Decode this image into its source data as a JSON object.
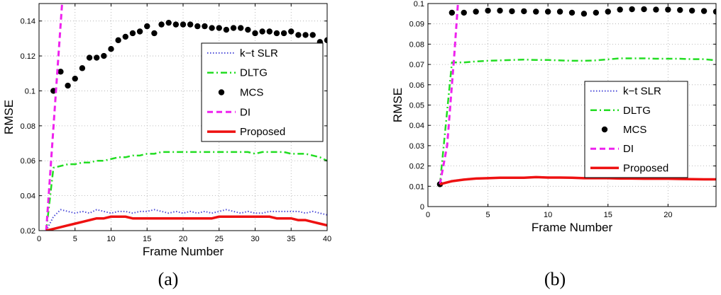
{
  "chart_data": [
    {
      "type": "line",
      "caption": "(a)",
      "xlabel": "Frame Number",
      "ylabel": "RMSE",
      "xlim": [
        0,
        40
      ],
      "ylim": [
        0.02,
        0.15
      ],
      "xticks": [
        0,
        5,
        10,
        15,
        20,
        25,
        30,
        35,
        40
      ],
      "yticks": [
        0.02,
        0.04,
        0.06,
        0.08,
        0.1,
        0.12,
        0.14
      ],
      "ytick_labels": [
        "0.02",
        "0.04",
        "0.06",
        "0.08",
        "0.1",
        "0.12",
        "0.14"
      ],
      "grid": true,
      "legend_position": "center-right",
      "series": [
        {
          "name": "k−t SLR",
          "style": "dotted",
          "color": "#4a4ad8",
          "x": [
            1,
            2,
            3,
            4,
            5,
            6,
            7,
            8,
            9,
            10,
            11,
            12,
            13,
            14,
            15,
            16,
            17,
            18,
            19,
            20,
            21,
            22,
            23,
            24,
            25,
            26,
            27,
            28,
            29,
            30,
            31,
            32,
            33,
            34,
            35,
            36,
            37,
            38,
            39,
            40
          ],
          "y": [
            0.02,
            0.028,
            0.032,
            0.031,
            0.03,
            0.031,
            0.03,
            0.032,
            0.031,
            0.03,
            0.031,
            0.031,
            0.03,
            0.031,
            0.031,
            0.032,
            0.031,
            0.03,
            0.031,
            0.03,
            0.031,
            0.03,
            0.031,
            0.03,
            0.031,
            0.032,
            0.031,
            0.03,
            0.031,
            0.03,
            0.03,
            0.031,
            0.031,
            0.031,
            0.031,
            0.031,
            0.03,
            0.031,
            0.03,
            0.029
          ]
        },
        {
          "name": "DLTG",
          "style": "dashdot",
          "color": "#22dd22",
          "x": [
            1,
            2,
            3,
            4,
            5,
            6,
            7,
            8,
            9,
            10,
            11,
            12,
            13,
            14,
            15,
            16,
            17,
            18,
            19,
            20,
            21,
            22,
            23,
            24,
            25,
            26,
            27,
            28,
            29,
            30,
            31,
            32,
            33,
            34,
            35,
            36,
            37,
            38,
            39,
            40
          ],
          "y": [
            0.02,
            0.056,
            0.057,
            0.058,
            0.058,
            0.059,
            0.059,
            0.06,
            0.06,
            0.061,
            0.062,
            0.062,
            0.063,
            0.063,
            0.064,
            0.064,
            0.065,
            0.065,
            0.065,
            0.065,
            0.065,
            0.065,
            0.065,
            0.065,
            0.065,
            0.065,
            0.065,
            0.065,
            0.065,
            0.064,
            0.065,
            0.065,
            0.065,
            0.065,
            0.064,
            0.064,
            0.064,
            0.063,
            0.062,
            0.06
          ]
        },
        {
          "name": "MCS",
          "style": "markers",
          "color": "#000000",
          "x": [
            2,
            3,
            4,
            5,
            6,
            7,
            8,
            9,
            10,
            11,
            12,
            13,
            14,
            15,
            16,
            17,
            18,
            19,
            20,
            21,
            22,
            23,
            24,
            25,
            26,
            27,
            28,
            29,
            30,
            31,
            32,
            33,
            34,
            35,
            36,
            37,
            38,
            39,
            40
          ],
          "y": [
            0.1,
            0.111,
            0.103,
            0.107,
            0.113,
            0.119,
            0.119,
            0.12,
            0.124,
            0.129,
            0.131,
            0.133,
            0.134,
            0.137,
            0.133,
            0.138,
            0.139,
            0.138,
            0.138,
            0.138,
            0.137,
            0.137,
            0.136,
            0.136,
            0.135,
            0.136,
            0.136,
            0.135,
            0.133,
            0.134,
            0.134,
            0.133,
            0.133,
            0.134,
            0.132,
            0.132,
            0.132,
            0.128,
            0.129
          ]
        },
        {
          "name": "DI",
          "style": "dashed",
          "color": "#ee22ee",
          "x": [
            1,
            3.2
          ],
          "y": [
            0.02,
            0.15
          ]
        },
        {
          "name": "Proposed",
          "style": "solid",
          "color": "#ee1111",
          "x": [
            1,
            2,
            3,
            4,
            5,
            6,
            7,
            8,
            9,
            10,
            11,
            12,
            13,
            14,
            15,
            16,
            17,
            18,
            19,
            20,
            21,
            22,
            23,
            24,
            25,
            26,
            27,
            28,
            29,
            30,
            31,
            32,
            33,
            34,
            35,
            36,
            37,
            38,
            39,
            40
          ],
          "y": [
            0.02,
            0.021,
            0.022,
            0.023,
            0.024,
            0.025,
            0.026,
            0.027,
            0.027,
            0.028,
            0.028,
            0.028,
            0.027,
            0.027,
            0.027,
            0.027,
            0.027,
            0.027,
            0.027,
            0.027,
            0.027,
            0.027,
            0.027,
            0.027,
            0.028,
            0.028,
            0.028,
            0.028,
            0.028,
            0.028,
            0.028,
            0.028,
            0.027,
            0.027,
            0.027,
            0.026,
            0.026,
            0.025,
            0.024,
            0.023
          ]
        }
      ]
    },
    {
      "type": "line",
      "caption": "(b)",
      "xlabel": "Frame Number",
      "ylabel": "RMSE",
      "xlim": [
        0,
        24
      ],
      "ylim": [
        0,
        0.1
      ],
      "xticks": [
        0,
        5,
        10,
        15,
        20
      ],
      "yticks": [
        0,
        0.01,
        0.02,
        0.03,
        0.04,
        0.05,
        0.06,
        0.07,
        0.08,
        0.09,
        0.1
      ],
      "ytick_labels": [
        "0",
        "0.01",
        "0.02",
        "0.03",
        "0.04",
        "0.05",
        "0.06",
        "0.07",
        "0.08",
        "0.09",
        "0.1"
      ],
      "grid": true,
      "legend_position": "center-right",
      "series": [
        {
          "name": "k−t SLR",
          "style": "dotted",
          "color": "#4a4ad8",
          "x": [
            1,
            2,
            3,
            4,
            5,
            6,
            7,
            8,
            9,
            10,
            11,
            12,
            13,
            14,
            15,
            16,
            17,
            18,
            19,
            20,
            21,
            22,
            23,
            24
          ],
          "y": [
            0.011,
            0.0128,
            0.0135,
            0.014,
            0.014,
            0.0142,
            0.0142,
            0.0142,
            0.0145,
            0.0143,
            0.0143,
            0.0142,
            0.014,
            0.014,
            0.0142,
            0.015,
            0.0145,
            0.0138,
            0.0138,
            0.0137,
            0.0136,
            0.0135,
            0.0134,
            0.0134
          ]
        },
        {
          "name": "DLTG",
          "style": "dashdot",
          "color": "#22dd22",
          "x": [
            1,
            2,
            3,
            4,
            5,
            6,
            7,
            8,
            9,
            10,
            11,
            12,
            13,
            14,
            15,
            16,
            17,
            18,
            19,
            20,
            21,
            22,
            23,
            24
          ],
          "y": [
            0.011,
            0.071,
            0.071,
            0.0715,
            0.0718,
            0.072,
            0.0722,
            0.0724,
            0.0722,
            0.0722,
            0.072,
            0.0718,
            0.0718,
            0.072,
            0.0725,
            0.073,
            0.073,
            0.073,
            0.0728,
            0.0728,
            0.0728,
            0.0726,
            0.0726,
            0.072
          ]
        },
        {
          "name": "MCS",
          "style": "markers",
          "color": "#000000",
          "x": [
            1,
            2,
            3,
            4,
            5,
            6,
            7,
            8,
            9,
            10,
            11,
            12,
            13,
            14,
            15,
            16,
            17,
            18,
            19,
            20,
            21,
            22,
            23,
            24
          ],
          "y": [
            0.011,
            0.0955,
            0.0955,
            0.096,
            0.0965,
            0.0965,
            0.0962,
            0.0962,
            0.096,
            0.096,
            0.096,
            0.0955,
            0.095,
            0.0955,
            0.096,
            0.097,
            0.0972,
            0.0972,
            0.097,
            0.097,
            0.0968,
            0.0965,
            0.0963,
            0.096
          ]
        },
        {
          "name": "DI",
          "style": "dashed",
          "color": "#ee22ee",
          "x": [
            1,
            1.6,
            2.2,
            2.5
          ],
          "y": [
            0.011,
            0.03,
            0.075,
            0.1
          ]
        },
        {
          "name": "Proposed",
          "style": "solid",
          "color": "#ee1111",
          "x": [
            1,
            2,
            3,
            4,
            5,
            6,
            7,
            8,
            9,
            10,
            11,
            12,
            13,
            14,
            15,
            16,
            17,
            18,
            19,
            20,
            21,
            22,
            23,
            24
          ],
          "y": [
            0.011,
            0.0125,
            0.0133,
            0.0138,
            0.014,
            0.0142,
            0.0142,
            0.0142,
            0.0145,
            0.0143,
            0.0143,
            0.0142,
            0.014,
            0.014,
            0.014,
            0.0138,
            0.0138,
            0.0137,
            0.0137,
            0.0137,
            0.0136,
            0.0135,
            0.0134,
            0.0134
          ]
        }
      ]
    }
  ]
}
